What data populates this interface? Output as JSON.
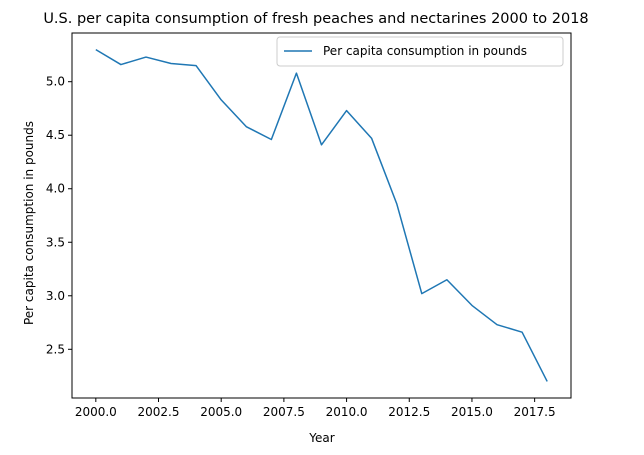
{
  "chart_data": {
    "type": "line",
    "title": "U.S. per capita consumption of fresh peaches and nectarines 2000 to 2018",
    "xlabel": "Year",
    "ylabel": "Per capita consumption in pounds",
    "xlim": [
      1999.05,
      2018.95
    ],
    "ylim": [
      2.045,
      5.455
    ],
    "xticks": [
      2000,
      2002.5,
      2005,
      2007.5,
      2010,
      2012.5,
      2015,
      2017.5
    ],
    "xtick_labels": [
      "2000.0",
      "2002.5",
      "2005.0",
      "2007.5",
      "2010.0",
      "2012.5",
      "2015.0",
      "2017.5"
    ],
    "yticks": [
      2.5,
      3.0,
      3.5,
      4.0,
      4.5,
      5.0
    ],
    "ytick_labels": [
      "2.5",
      "3.0",
      "3.5",
      "4.0",
      "4.5",
      "5.0"
    ],
    "grid": false,
    "legend": "top-right",
    "colors": {
      "series": "#1f77b4"
    },
    "series": [
      {
        "name": "Per capita consumption in pounds",
        "x": [
          2000,
          2001,
          2002,
          2003,
          2004,
          2005,
          2006,
          2007,
          2008,
          2009,
          2010,
          2011,
          2012,
          2013,
          2014,
          2015,
          2016,
          2017,
          2018
        ],
        "y": [
          5.3,
          5.16,
          5.23,
          5.17,
          5.15,
          4.83,
          4.58,
          4.46,
          5.08,
          4.41,
          4.73,
          4.47,
          3.86,
          3.02,
          3.15,
          2.91,
          2.73,
          2.66,
          2.2
        ]
      }
    ]
  }
}
